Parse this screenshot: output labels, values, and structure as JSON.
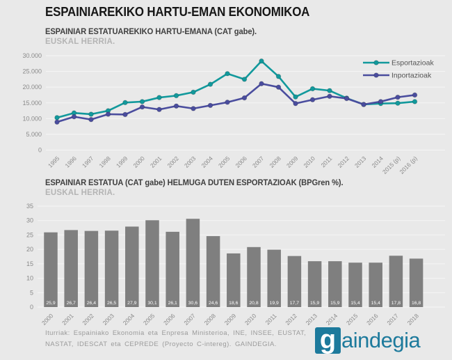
{
  "page": {
    "title": "ESPAINIAREKIKO HARTU-EMAN EKONOMIKOA",
    "background": "#e9e9e9",
    "gridline_color": "#ffffff"
  },
  "chart_data": [
    {
      "type": "line",
      "title": "ESPAINIAR ESTATUAREKIKO HARTU-EMANA (CAT gabe).",
      "subtitle": "EUSKAL HERRIA.",
      "categories": [
        "1995",
        "1996",
        "1997",
        "1998",
        "1999",
        "2000",
        "2001",
        "2002",
        "2003",
        "2004",
        "2005",
        "2006",
        "2007",
        "2008",
        "2009",
        "2010",
        "2011",
        "2012",
        "2013",
        "2014",
        "2015 (p)",
        "2016 (p)"
      ],
      "series": [
        {
          "name": "Esportazioak",
          "color": "#12999c",
          "values": [
            10300,
            11800,
            11400,
            12500,
            15100,
            15400,
            16700,
            17300,
            18400,
            20900,
            24300,
            22500,
            28300,
            23400,
            16900,
            19500,
            18900,
            16500,
            14500,
            14800,
            14900,
            15400
          ]
        },
        {
          "name": "Inportazioak",
          "color": "#4a4d9e",
          "values": [
            8900,
            10600,
            9700,
            11400,
            11300,
            13700,
            12900,
            14000,
            13200,
            14200,
            15200,
            16600,
            21100,
            20000,
            14800,
            16000,
            17100,
            16400,
            14500,
            15400,
            16800,
            17500
          ]
        }
      ],
      "ylim": [
        0,
        30000
      ],
      "ytick_step": 5000,
      "ytick_labels": [
        "0",
        "5.000",
        "10.000",
        "15.000",
        "20.000",
        "25.000",
        "30.000"
      ],
      "grid": true,
      "legend_position": "top-right"
    },
    {
      "type": "bar",
      "title": "ESPAINIAR ESTATUA (CAT gabe) HELMUGA DUTEN ESPORTAZIOAK (BPGren %).",
      "subtitle": "EUSKAL HERRIA.",
      "categories": [
        "2000",
        "2001",
        "2002",
        "2003",
        "2004",
        "2005",
        "2006",
        "2007",
        "2008",
        "2009",
        "2010",
        "2011",
        "2012",
        "2013",
        "2014",
        "2015",
        "2016",
        "2017",
        "2018"
      ],
      "values": [
        25.9,
        26.7,
        26.4,
        26.5,
        27.9,
        30.1,
        26.1,
        30.6,
        24.6,
        18.6,
        20.8,
        19.9,
        17.7,
        15.9,
        15.9,
        15.4,
        15.4,
        17.8,
        16.8
      ],
      "value_labels": [
        "25,9",
        "26,7",
        "26,4",
        "26,5",
        "27,9",
        "30,1",
        "26,1",
        "30,6",
        "24,6",
        "18,6",
        "20,8",
        "19,9",
        "17,7",
        "15,9",
        "15,9",
        "15,4",
        "15,4",
        "17,8",
        "16,8"
      ],
      "ylim": [
        0,
        35
      ],
      "ytick_step": 5,
      "ytick_labels": [
        "0",
        "5",
        "10",
        "15",
        "20",
        "25",
        "30",
        "35"
      ],
      "grid": true,
      "bar_color": "#7f7f7f",
      "value_label_color": "#ffffff"
    }
  ],
  "footer": {
    "sources_line1": "Iturriak: Espainiako Ekonomia eta Enpresa Ministerioa, INE, INSEE, EUSTAT,",
    "sources_line2": "NASTAT, IDESCAT eta CEPREDE (Proyecto C-intereg). GAINDEGIA.",
    "logo_letter": "g",
    "logo_word": "aindegia",
    "logo_color": "#1d7a9c"
  }
}
